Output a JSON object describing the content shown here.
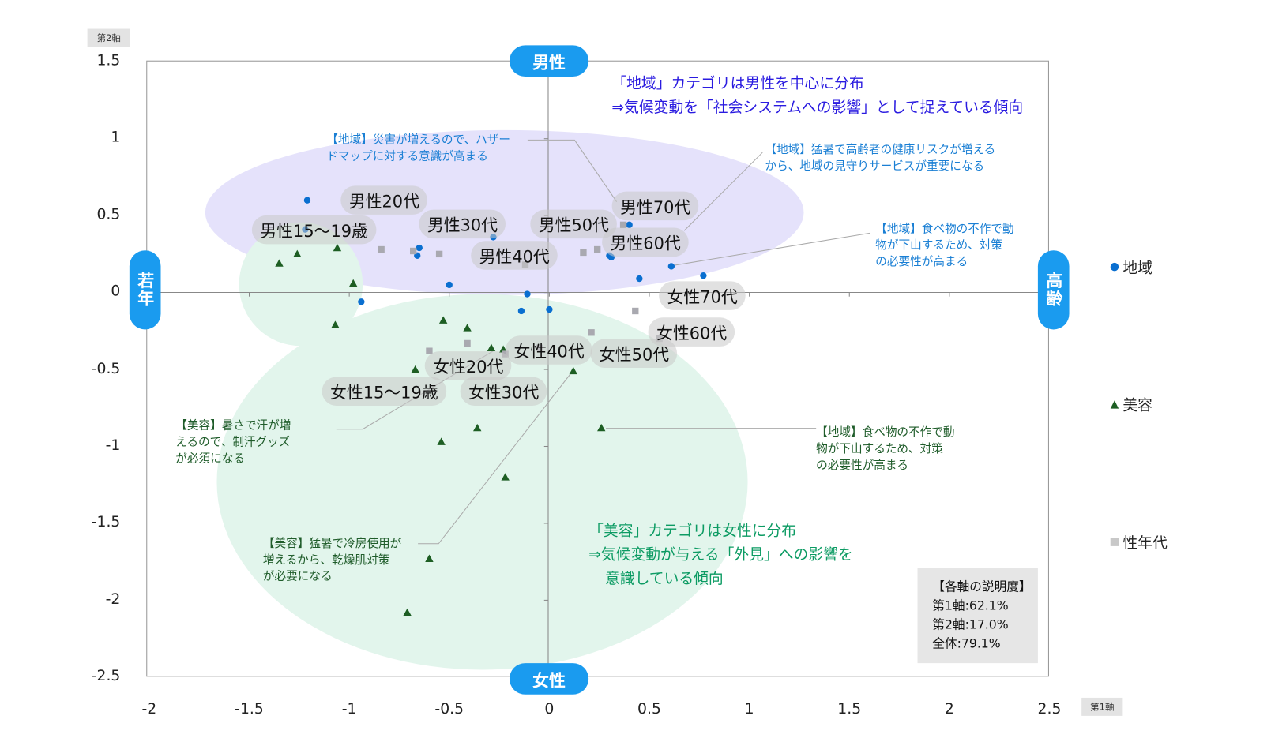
{
  "chart_data": {
    "type": "scatter",
    "title": "",
    "xlabel": "第1軸",
    "ylabel": "第2軸",
    "xlim": [
      -2,
      2.5
    ],
    "ylim": [
      -2.5,
      1.5
    ],
    "x_ticks": [
      "-2",
      "-1.5",
      "-1",
      "-0.5",
      "0",
      "0.5",
      "1",
      "1.5",
      "2",
      "2.5"
    ],
    "y_ticks": [
      "1.5",
      "1",
      "0.5",
      "0",
      "-0.5",
      "-1",
      "-1.5",
      "-2",
      "-2.5"
    ],
    "grid": false,
    "legend_position": "right",
    "axis_ends": {
      "top": "男性",
      "bottom": "女性",
      "left": "若年",
      "right": "高齢"
    },
    "series": [
      {
        "name": "地域",
        "marker": "circle",
        "color": "#0a6fd0",
        "points": [
          [
            -1.21,
            0.6
          ],
          [
            -1.22,
            0.41
          ],
          [
            -0.65,
            0.29
          ],
          [
            -0.66,
            0.24
          ],
          [
            -0.5,
            0.05
          ],
          [
            -0.94,
            -0.06
          ],
          [
            -0.11,
            -0.01
          ],
          [
            -0.14,
            -0.12
          ],
          [
            0.0,
            -0.11
          ],
          [
            0.4,
            0.44
          ],
          [
            0.3,
            0.24
          ],
          [
            0.61,
            0.17
          ],
          [
            0.45,
            0.09
          ],
          [
            0.77,
            0.11
          ],
          [
            -0.28,
            0.36
          ],
          [
            0.31,
            0.23
          ]
        ]
      },
      {
        "name": "美容",
        "marker": "triangle",
        "color": "#1d5e23",
        "points": [
          [
            -1.35,
            0.19
          ],
          [
            -1.26,
            0.25
          ],
          [
            -1.06,
            0.29
          ],
          [
            -0.98,
            0.06
          ],
          [
            -1.07,
            -0.21
          ],
          [
            -0.53,
            -0.18
          ],
          [
            -0.41,
            -0.23
          ],
          [
            -0.67,
            -0.5
          ],
          [
            -0.29,
            -0.36
          ],
          [
            0.12,
            -0.51
          ],
          [
            0.26,
            -0.88
          ],
          [
            -0.36,
            -0.88
          ],
          [
            -0.54,
            -0.97
          ],
          [
            -0.22,
            -1.2
          ],
          [
            -0.6,
            -1.73
          ],
          [
            -0.71,
            -2.08
          ],
          [
            -0.23,
            -0.37
          ]
        ]
      },
      {
        "name": "性年代",
        "marker": "square",
        "color": "#a9a9b0",
        "points": [
          {
            "label": "男性15〜19歳",
            "x": -0.84,
            "y": 0.28
          },
          {
            "label": "男性20代",
            "x": -0.68,
            "y": 0.27
          },
          {
            "label": "男性30代",
            "x": -0.55,
            "y": 0.25
          },
          {
            "label": "男性40代",
            "x": -0.12,
            "y": 0.18
          },
          {
            "label": "男性50代",
            "x": 0.17,
            "y": 0.26
          },
          {
            "label": "男性60代",
            "x": 0.24,
            "y": 0.28
          },
          {
            "label": "男性70代",
            "x": 0.37,
            "y": 0.44
          },
          {
            "label": "女性15〜19歳",
            "x": -0.6,
            "y": -0.38
          },
          {
            "label": "女性20代",
            "x": -0.41,
            "y": -0.33
          },
          {
            "label": "女性30代",
            "x": -0.22,
            "y": -0.4
          },
          {
            "label": "女性40代",
            "x": -0.05,
            "y": -0.36
          },
          {
            "label": "女性50代",
            "x": 0.21,
            "y": -0.26
          },
          {
            "label": "女性60代",
            "x": 0.55,
            "y": -0.3
          },
          {
            "label": "女性70代",
            "x": 0.43,
            "y": -0.12
          }
        ]
      }
    ],
    "annotations": {
      "region_summary": [
        "「地域」カテゴリは男性を中心に分布",
        "⇒気候変動を「社会システムへの影響」として捉えている傾向"
      ],
      "beauty_summary": [
        "「美容」カテゴリは女性に分布",
        "⇒気候変動が与える「外見」への影響を",
        "意識している傾向"
      ],
      "notes": [
        [
          "【地域】災害が増えるので、ハザー",
          "ドマップに対する意識が高まる"
        ],
        [
          "【地域】猛暑で高齢者の健康リスクが増える",
          "から、地域の見守りサービスが重要になる"
        ],
        [
          "【地域】食べ物の不作で動",
          "物が下山するため、対策",
          "の必要性が高まる"
        ],
        [
          "【美容】暑さで汗が増",
          "えるので、制汗グッズ",
          "が必須になる"
        ],
        [
          "【美容】猛暑で冷房使用が",
          "増えるから、乾燥肌対策",
          "が必要になる"
        ],
        [
          "【地域】食べ物の不作で動",
          "物が下山するため、対策",
          "の必要性が高まる"
        ]
      ],
      "explained_variance": {
        "title": "【各軸の説明度】",
        "axis1": "第1軸:62.1%",
        "axis2": "第2軸:17.0%",
        "total": "全体:79.1%"
      }
    }
  }
}
